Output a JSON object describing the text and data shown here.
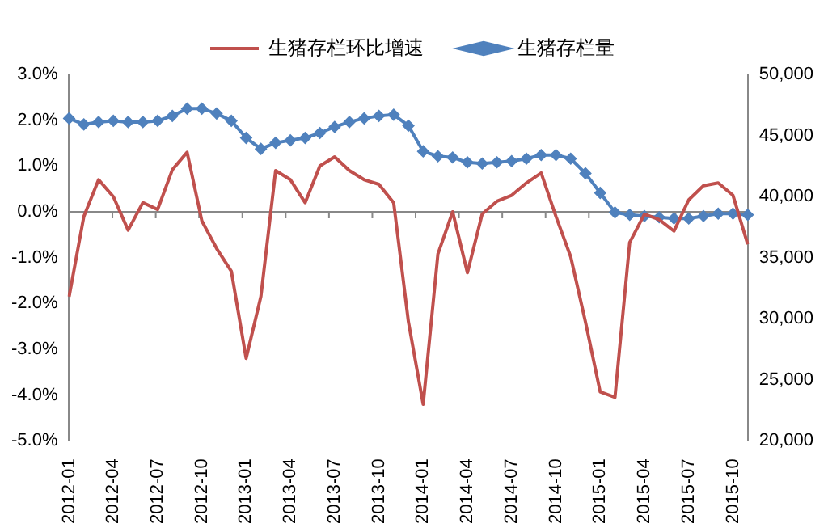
{
  "chart_data": {
    "type": "line",
    "categories": [
      "2012-01",
      null,
      null,
      "2012-04",
      null,
      null,
      "2012-07",
      null,
      null,
      "2012-10",
      null,
      null,
      "2013-01",
      null,
      null,
      "2013-04",
      null,
      null,
      "2013-07",
      null,
      null,
      "2013-10",
      null,
      null,
      "2014-01",
      null,
      null,
      "2014-04",
      null,
      null,
      "2014-07",
      null,
      null,
      "2014-10",
      null,
      null,
      "2015-01",
      null,
      null,
      "2015-04",
      null,
      null,
      "2015-07",
      null,
      null,
      "2015-10",
      null
    ],
    "series": [
      {
        "name": "生猪存栏环比增速",
        "color": "#c0504d",
        "marker": "none",
        "values": [
          -1.85,
          -0.1,
          0.7,
          0.33,
          -0.4,
          0.2,
          0.05,
          0.92,
          1.3,
          -0.2,
          -0.8,
          -1.3,
          -3.2,
          -1.85,
          0.9,
          0.7,
          0.2,
          1.0,
          1.2,
          0.9,
          0.7,
          0.6,
          0.2,
          -2.4,
          -4.2,
          -0.92,
          0.0,
          -1.33,
          -0.05,
          0.23,
          0.36,
          0.63,
          0.85,
          -0.1,
          -0.98,
          -2.4,
          -3.93,
          -4.05,
          -0.67,
          -0.05,
          -0.17,
          -0.42,
          0.26,
          0.57,
          0.63,
          0.36,
          -0.71
        ]
      },
      {
        "name": "生猪存栏量",
        "color": "#4f81bd",
        "marker": "diamond",
        "axis": "y2",
        "values": [
          46400,
          45900,
          46100,
          46200,
          46100,
          46100,
          46200,
          46600,
          47200,
          47200,
          46800,
          46200,
          44800,
          43900,
          44400,
          44600,
          44800,
          45200,
          45700,
          46100,
          46400,
          46600,
          46700,
          45800,
          43700,
          43300,
          43200,
          42800,
          42700,
          42800,
          42900,
          43100,
          43400,
          43400,
          43100,
          41900,
          40300,
          38700,
          38500,
          38400,
          38300,
          38200,
          38200,
          38400,
          38600,
          38600,
          38500
        ]
      }
    ],
    "ylim": [
      -5,
      3
    ],
    "yticks": [
      {
        "value": -5,
        "label": "-5.0%"
      },
      {
        "value": -4,
        "label": "-4.0%"
      },
      {
        "value": -3,
        "label": "-3.0%"
      },
      {
        "value": -2,
        "label": "-2.0%"
      },
      {
        "value": -1,
        "label": "-1.0%"
      },
      {
        "value": 0,
        "label": "0.0%"
      },
      {
        "value": 1,
        "label": "1.0%"
      },
      {
        "value": 2,
        "label": "2.0%"
      },
      {
        "value": 3,
        "label": "3.0%"
      }
    ],
    "y2lim": [
      20000,
      50000
    ],
    "y2ticks": [
      {
        "value": 20000,
        "label": "20,000"
      },
      {
        "value": 25000,
        "label": "25,000"
      },
      {
        "value": 30000,
        "label": "30,000"
      },
      {
        "value": 35000,
        "label": "35,000"
      },
      {
        "value": 40000,
        "label": "40,000"
      },
      {
        "value": 45000,
        "label": "45,000"
      },
      {
        "value": 50000,
        "label": "50,000"
      }
    ],
    "ref_lines": [
      {
        "axis": "y",
        "value": 0,
        "color": "#888888"
      }
    ],
    "grid": false,
    "legend": "top"
  }
}
